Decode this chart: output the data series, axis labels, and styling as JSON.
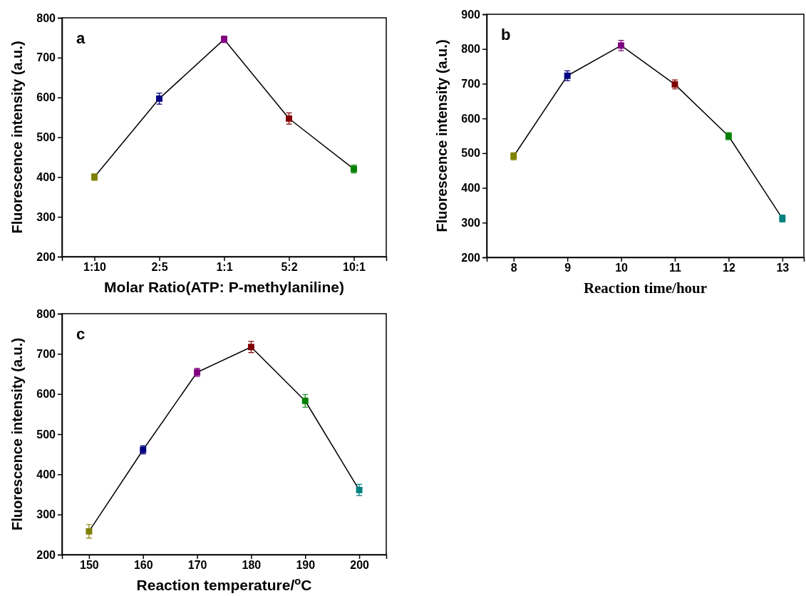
{
  "chart_data": [
    {
      "type": "line",
      "categories": [
        "1:10",
        "2:5",
        "1:1",
        "5:2",
        "10:1"
      ],
      "xlabel": "Molar Ratio(ATP: P-methylaniline)",
      "ylabel": "Fluorescence intensity (a.u.)",
      "ylim": [
        200,
        800
      ],
      "yticks": [
        200,
        300,
        400,
        500,
        600,
        700,
        800
      ],
      "marker": "square",
      "line_style": "solid",
      "grid": false,
      "annotations": [
        "a"
      ],
      "series": [
        {
          "color": "#000000",
          "colors": [
            "#808000",
            "#000080",
            "#800080",
            "#800000",
            "#008000"
          ],
          "values": [
            400,
            597,
            746,
            547,
            420
          ],
          "errors": [
            8,
            14,
            8,
            14,
            10
          ]
        }
      ]
    },
    {
      "type": "line",
      "x": [
        8,
        9,
        10,
        11,
        12,
        13
      ],
      "xlabel": "Reaction time/hour",
      "ylabel": "Fluorescence intensity (a.u.)",
      "xlim": [
        7.5,
        13.4
      ],
      "xticks": [
        8,
        9,
        10,
        11,
        12,
        13
      ],
      "ylim": [
        200,
        900
      ],
      "yticks": [
        200,
        300,
        400,
        500,
        600,
        700,
        800,
        900
      ],
      "marker": "square",
      "line_style": "solid",
      "grid": false,
      "annotations": [
        "b"
      ],
      "series": [
        {
          "color": "#000000",
          "colors": [
            "#808000",
            "#000080",
            "#800080",
            "#800000",
            "#008000",
            "#008080"
          ],
          "values": [
            491,
            723,
            810,
            698,
            549,
            312
          ],
          "errors": [
            10,
            14,
            15,
            13,
            10,
            10
          ]
        }
      ]
    },
    {
      "type": "line",
      "x": [
        150,
        160,
        170,
        180,
        190,
        200
      ],
      "xlabel": "Reaction temperature/$^{o}$C",
      "ylabel": "Fluorescence intensity (a.u.)",
      "xlim": [
        145,
        205
      ],
      "xticks": [
        150,
        160,
        170,
        180,
        190,
        200
      ],
      "ylim": [
        200,
        800
      ],
      "yticks": [
        200,
        300,
        400,
        500,
        600,
        700,
        800
      ],
      "marker": "square",
      "line_style": "solid",
      "grid": false,
      "annotations": [
        "c"
      ],
      "series": [
        {
          "color": "#000000",
          "colors": [
            "#808000",
            "#000080",
            "#800080",
            "#800000",
            "#008000",
            "#008080"
          ],
          "values": [
            258,
            461,
            654,
            717,
            583,
            361
          ],
          "errors": [
            17,
            10,
            10,
            14,
            16,
            14
          ]
        }
      ]
    }
  ]
}
